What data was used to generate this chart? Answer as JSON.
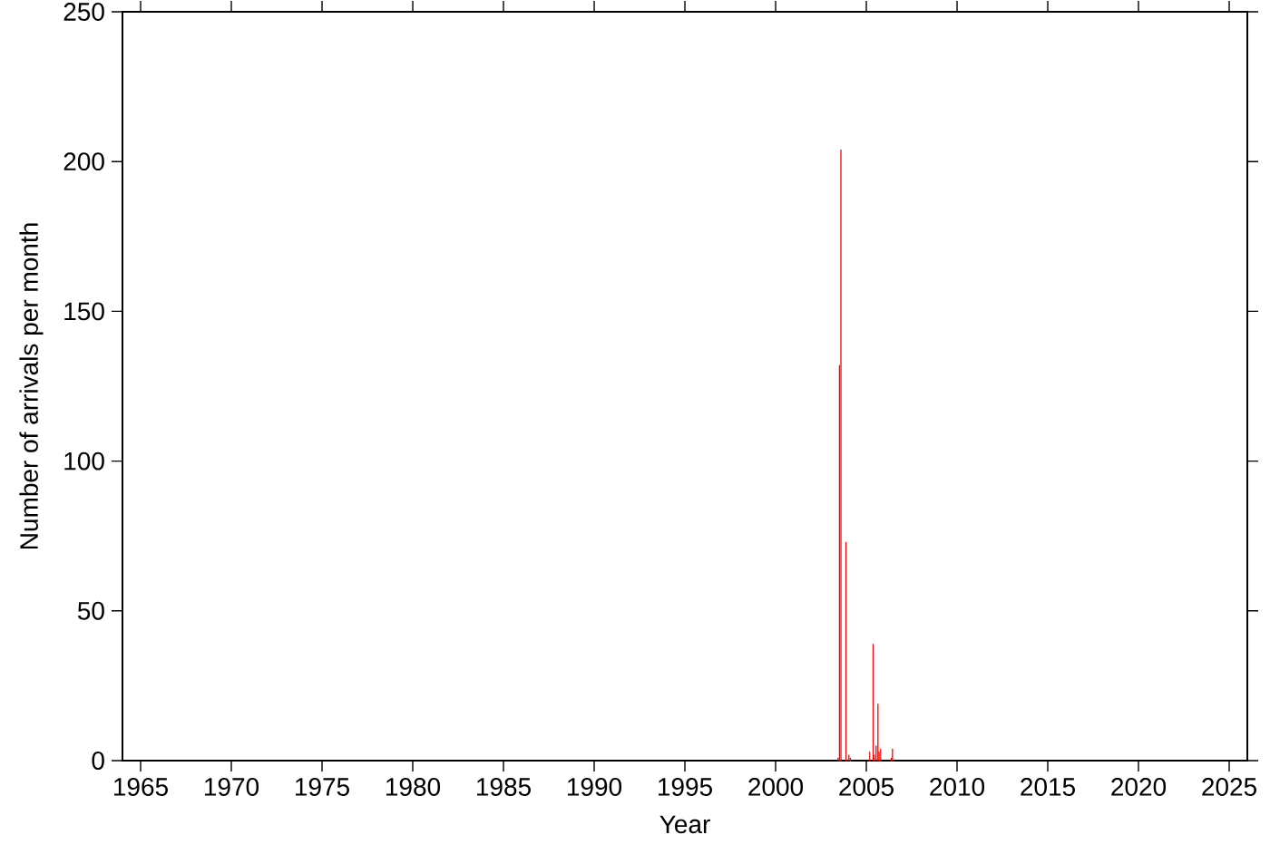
{
  "chart_data": {
    "type": "bar",
    "xlabel": "Year",
    "ylabel": "Number of arrivals per month",
    "x": [
      2003.44,
      2003.52,
      2003.6,
      2003.88,
      2004.04,
      2004.12,
      2005.19,
      2005.37,
      2005.44,
      2005.54,
      2005.64,
      2005.7,
      2005.79,
      2006.37,
      2006.44
    ],
    "values": [
      1,
      132,
      204,
      73,
      2,
      1,
      3,
      39,
      2,
      5,
      19,
      3,
      4,
      1,
      4
    ],
    "color": "#ff0000",
    "xlim": [
      1964,
      2026
    ],
    "xticks": [
      1965,
      1970,
      1975,
      1980,
      1985,
      1990,
      1995,
      2000,
      2005,
      2010,
      2015,
      2020,
      2025
    ],
    "ylim": [
      0,
      250
    ],
    "yticks": [
      0,
      50,
      100,
      150,
      200,
      250
    ]
  }
}
